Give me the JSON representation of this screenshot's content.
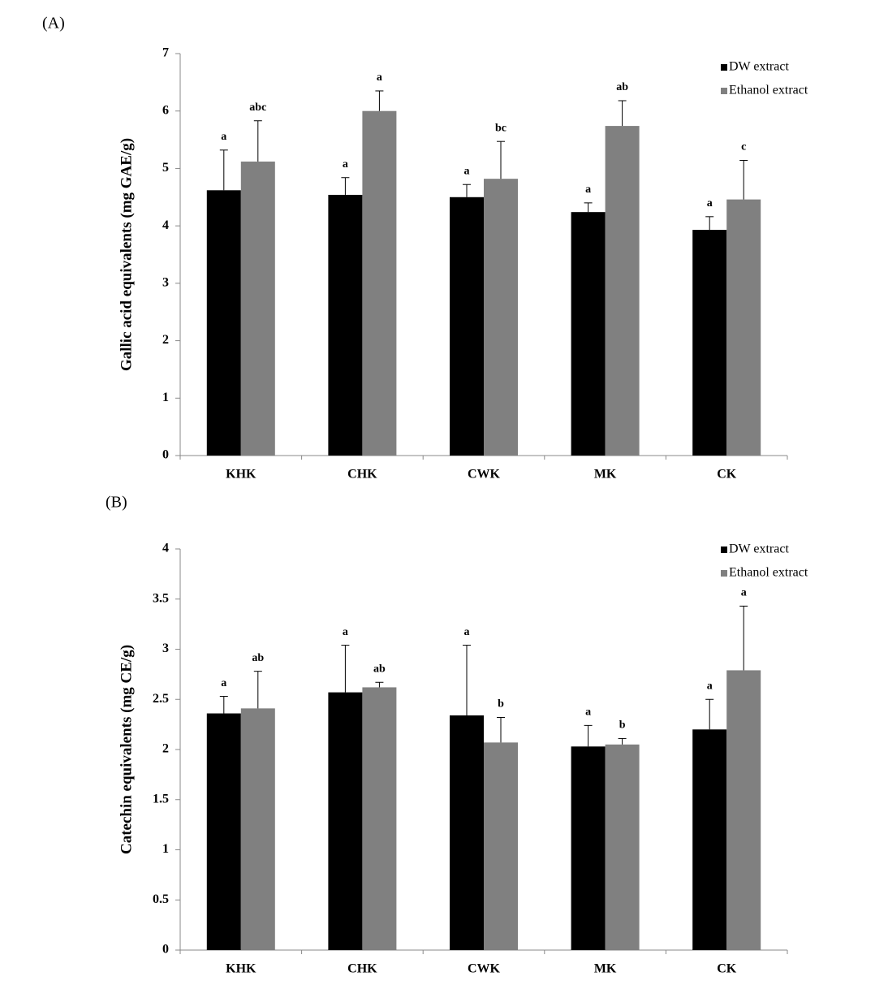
{
  "chart_data": [
    {
      "type": "bar",
      "panel_label": "(A)",
      "y_label": "Gallic acid equivalents (mg GAE/g)",
      "categories": [
        "KHK",
        "CHK",
        "CWK",
        "MK",
        "CK"
      ],
      "ylim": [
        0,
        7
      ],
      "yticks": [
        0,
        1,
        2,
        3,
        4,
        5,
        6,
        7
      ],
      "grid": false,
      "legend": "top-right",
      "series": [
        {
          "name": "DW extract",
          "color": "#000000",
          "values": [
            4.62,
            4.54,
            4.5,
            4.24,
            3.93
          ],
          "errors": [
            0.7,
            0.3,
            0.22,
            0.16,
            0.23
          ],
          "letters": [
            "a",
            "a",
            "a",
            "a",
            "a"
          ]
        },
        {
          "name": "Ethanol extract",
          "color": "#808080",
          "values": [
            5.12,
            6.0,
            4.82,
            5.74,
            4.46
          ],
          "errors": [
            0.71,
            0.35,
            0.65,
            0.44,
            0.68
          ],
          "letters": [
            "abc",
            "a",
            "bc",
            "ab",
            "c"
          ]
        }
      ]
    },
    {
      "type": "bar",
      "panel_label": "(B)",
      "y_label": "Catechin equivalents (mg CE/g)",
      "categories": [
        "KHK",
        "CHK",
        "CWK",
        "MK",
        "CK"
      ],
      "ylim": [
        0,
        4
      ],
      "yticks": [
        0,
        0.5,
        1,
        1.5,
        2,
        2.5,
        3,
        3.5,
        4
      ],
      "grid": false,
      "legend": "top-right",
      "series": [
        {
          "name": "DW extract",
          "color": "#000000",
          "values": [
            2.36,
            2.57,
            2.34,
            2.03,
            2.2
          ],
          "errors": [
            0.17,
            0.47,
            0.7,
            0.21,
            0.3
          ],
          "letters": [
            "a",
            "a",
            "a",
            "a",
            "a"
          ]
        },
        {
          "name": "Ethanol extract",
          "color": "#808080",
          "values": [
            2.41,
            2.62,
            2.07,
            2.05,
            2.79
          ],
          "errors": [
            0.37,
            0.05,
            0.25,
            0.06,
            0.64
          ],
          "letters": [
            "ab",
            "ab",
            "b",
            "b",
            "a"
          ]
        }
      ]
    }
  ]
}
